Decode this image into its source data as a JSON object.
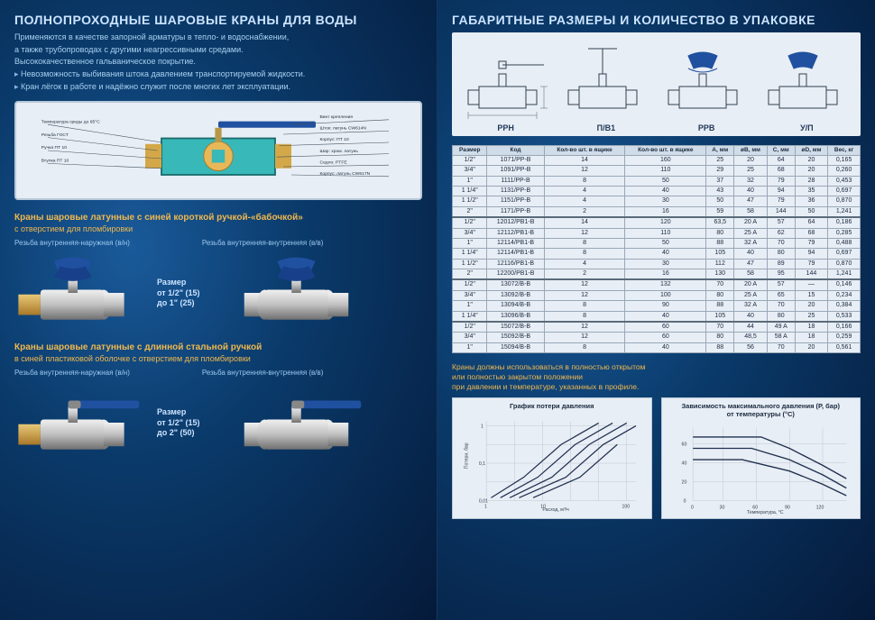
{
  "left": {
    "title": "ПОЛНОПРОХОДНЫЕ ШАРОВЫЕ КРАНЫ ДЛЯ ВОДЫ",
    "intro": [
      "Применяются в качестве запорной арматуры в тепло- и водоснабжении,",
      "а также трубопроводах с другими неагрессивными средами.",
      "Высококачественное гальваническое покрытие."
    ],
    "bullets": [
      "Невозможность выбивания штока давлением транспортируемой жидкости.",
      "Кран лёгок в работе и надёжно служит после многих лет эксплуатации."
    ],
    "cutaway_labels_left": [
      "Температура среды до 95°C",
      "Резьба ГОСТ",
      "Ручка ПТ 10",
      "Втулка ПТ 10"
    ],
    "cutaway_labels_right": [
      "Винт крепления",
      "Шток: латунь CW614N",
      "Корпус: ПТ 10",
      "Шар: хром. латунь",
      "Седло: PTFE",
      "Корпус: латунь CW617N"
    ],
    "section1_h": "Краны шаровые латунные с синей короткой ручкой-«бабочкой»",
    "section1_sub": "с отверстием для пломбировки",
    "thread_a": "Резьба внутренняя-наружная (в/н)",
    "thread_b": "Резьба внутренняя-внутренняя (в/в)",
    "size1_l1": "Размер",
    "size1_l2": "от 1/2\" (15)",
    "size1_l3": "до 1\" (25)",
    "section2_h": "Краны шаровые латунные с длинной стальной ручкой",
    "section2_sub": "в синей пластиковой оболочке с отверстием для пломбировки",
    "size2_l1": "Размер",
    "size2_l2": "от 1/2\" (15)",
    "size2_l3": "до 2\" (50)"
  },
  "right": {
    "title": "ГАБАРИТНЫЕ РАЗМЕРЫ И КОЛИЧЕСТВО В УПАКОВКЕ",
    "dim_labels": [
      "РРН",
      "П/В1",
      "РРВ",
      "У/П"
    ],
    "table": {
      "headers": [
        "Размер",
        "Код",
        "Кол-во шт. в ящике",
        "Кол-во шт. в ящике",
        "A, мм",
        "øB, мм",
        "C, мм",
        "øD, мм",
        "Вес, кг"
      ],
      "groups": [
        [
          [
            "1/2\"",
            "1071/РР-В",
            "14",
            "160",
            "25",
            "20",
            "64",
            "20",
            "0,165"
          ],
          [
            "3/4\"",
            "1091/РР-В",
            "12",
            "110",
            "29",
            "25",
            "68",
            "20",
            "0,260"
          ],
          [
            "1\"",
            "1111/РР-В",
            "8",
            "50",
            "37",
            "32",
            "79",
            "28",
            "0,453"
          ],
          [
            "1 1/4\"",
            "1131/РР-В",
            "4",
            "40",
            "43",
            "40",
            "94",
            "35",
            "0,697"
          ],
          [
            "1 1/2\"",
            "1151/РР-В",
            "4",
            "30",
            "50",
            "47",
            "79",
            "36",
            "0,870"
          ],
          [
            "2\"",
            "1171/РР-В",
            "2",
            "16",
            "59",
            "58",
            "144",
            "50",
            "1,241"
          ]
        ],
        [
          [
            "1/2\"",
            "12012/РВ1-В",
            "14",
            "120",
            "63,5",
            "20 A",
            "57",
            "64",
            "0,186"
          ],
          [
            "3/4\"",
            "12112/РВ1-В",
            "12",
            "110",
            "80",
            "25 A",
            "62",
            "68",
            "0,285"
          ],
          [
            "1\"",
            "12114/РВ1-В",
            "8",
            "50",
            "88",
            "32 A",
            "70",
            "79",
            "0,488"
          ],
          [
            "1 1/4\"",
            "12114/РВ1-В",
            "8",
            "40",
            "105",
            "40",
            "80",
            "94",
            "0,697"
          ],
          [
            "1 1/2\"",
            "12116/РВ1-В",
            "4",
            "30",
            "112",
            "47",
            "89",
            "79",
            "0,870"
          ],
          [
            "2\"",
            "12200/РВ1-В",
            "2",
            "16",
            "130",
            "58",
            "95",
            "144",
            "1,241"
          ]
        ],
        [
          [
            "1/2\"",
            "13072/В-В",
            "12",
            "132",
            "70",
            "20 A",
            "57",
            "—",
            "0,146"
          ],
          [
            "3/4\"",
            "13092/В-В",
            "12",
            "100",
            "80",
            "25 A",
            "65",
            "15",
            "0,234"
          ],
          [
            "1\"",
            "13094/В-В",
            "8",
            "90",
            "88",
            "32 A",
            "70",
            "20",
            "0,384"
          ],
          [
            "1 1/4\"",
            "13096/В-В",
            "8",
            "40",
            "105",
            "40",
            "80",
            "25",
            "0,533"
          ]
        ],
        [
          [
            "1/2\"",
            "15072/В-В",
            "12",
            "60",
            "70",
            "44",
            "49 A",
            "18",
            "0,166"
          ],
          [
            "3/4\"",
            "15092/В-В",
            "12",
            "60",
            "80",
            "48,5",
            "58 A",
            "18",
            "0,259"
          ],
          [
            "1\"",
            "15094/В-В",
            "8",
            "40",
            "88",
            "56",
            "70",
            "20",
            "0,561"
          ]
        ]
      ]
    },
    "note1": "Краны должны использоваться в полностью открытом",
    "note2": "или полностью закрытом положении",
    "note3": "при давлении и температуре, указанных в профиле.",
    "chart1_title": "График потери давления",
    "chart1_xlabel": "Расход, м³/ч",
    "chart1_ylabel": "Потери, бар",
    "chart2_title": "Зависимость максимального давления (Р, бар)",
    "chart2_sub": "от температуры (°C)",
    "chart2_xlabel": "Температура, °C",
    "colors": {
      "valve_body": "#c8c8c8",
      "valve_brass": "#d4a848",
      "valve_handle": "#2050a0",
      "chrome_hi": "#f0f0f0",
      "chrome_lo": "#888888"
    }
  }
}
